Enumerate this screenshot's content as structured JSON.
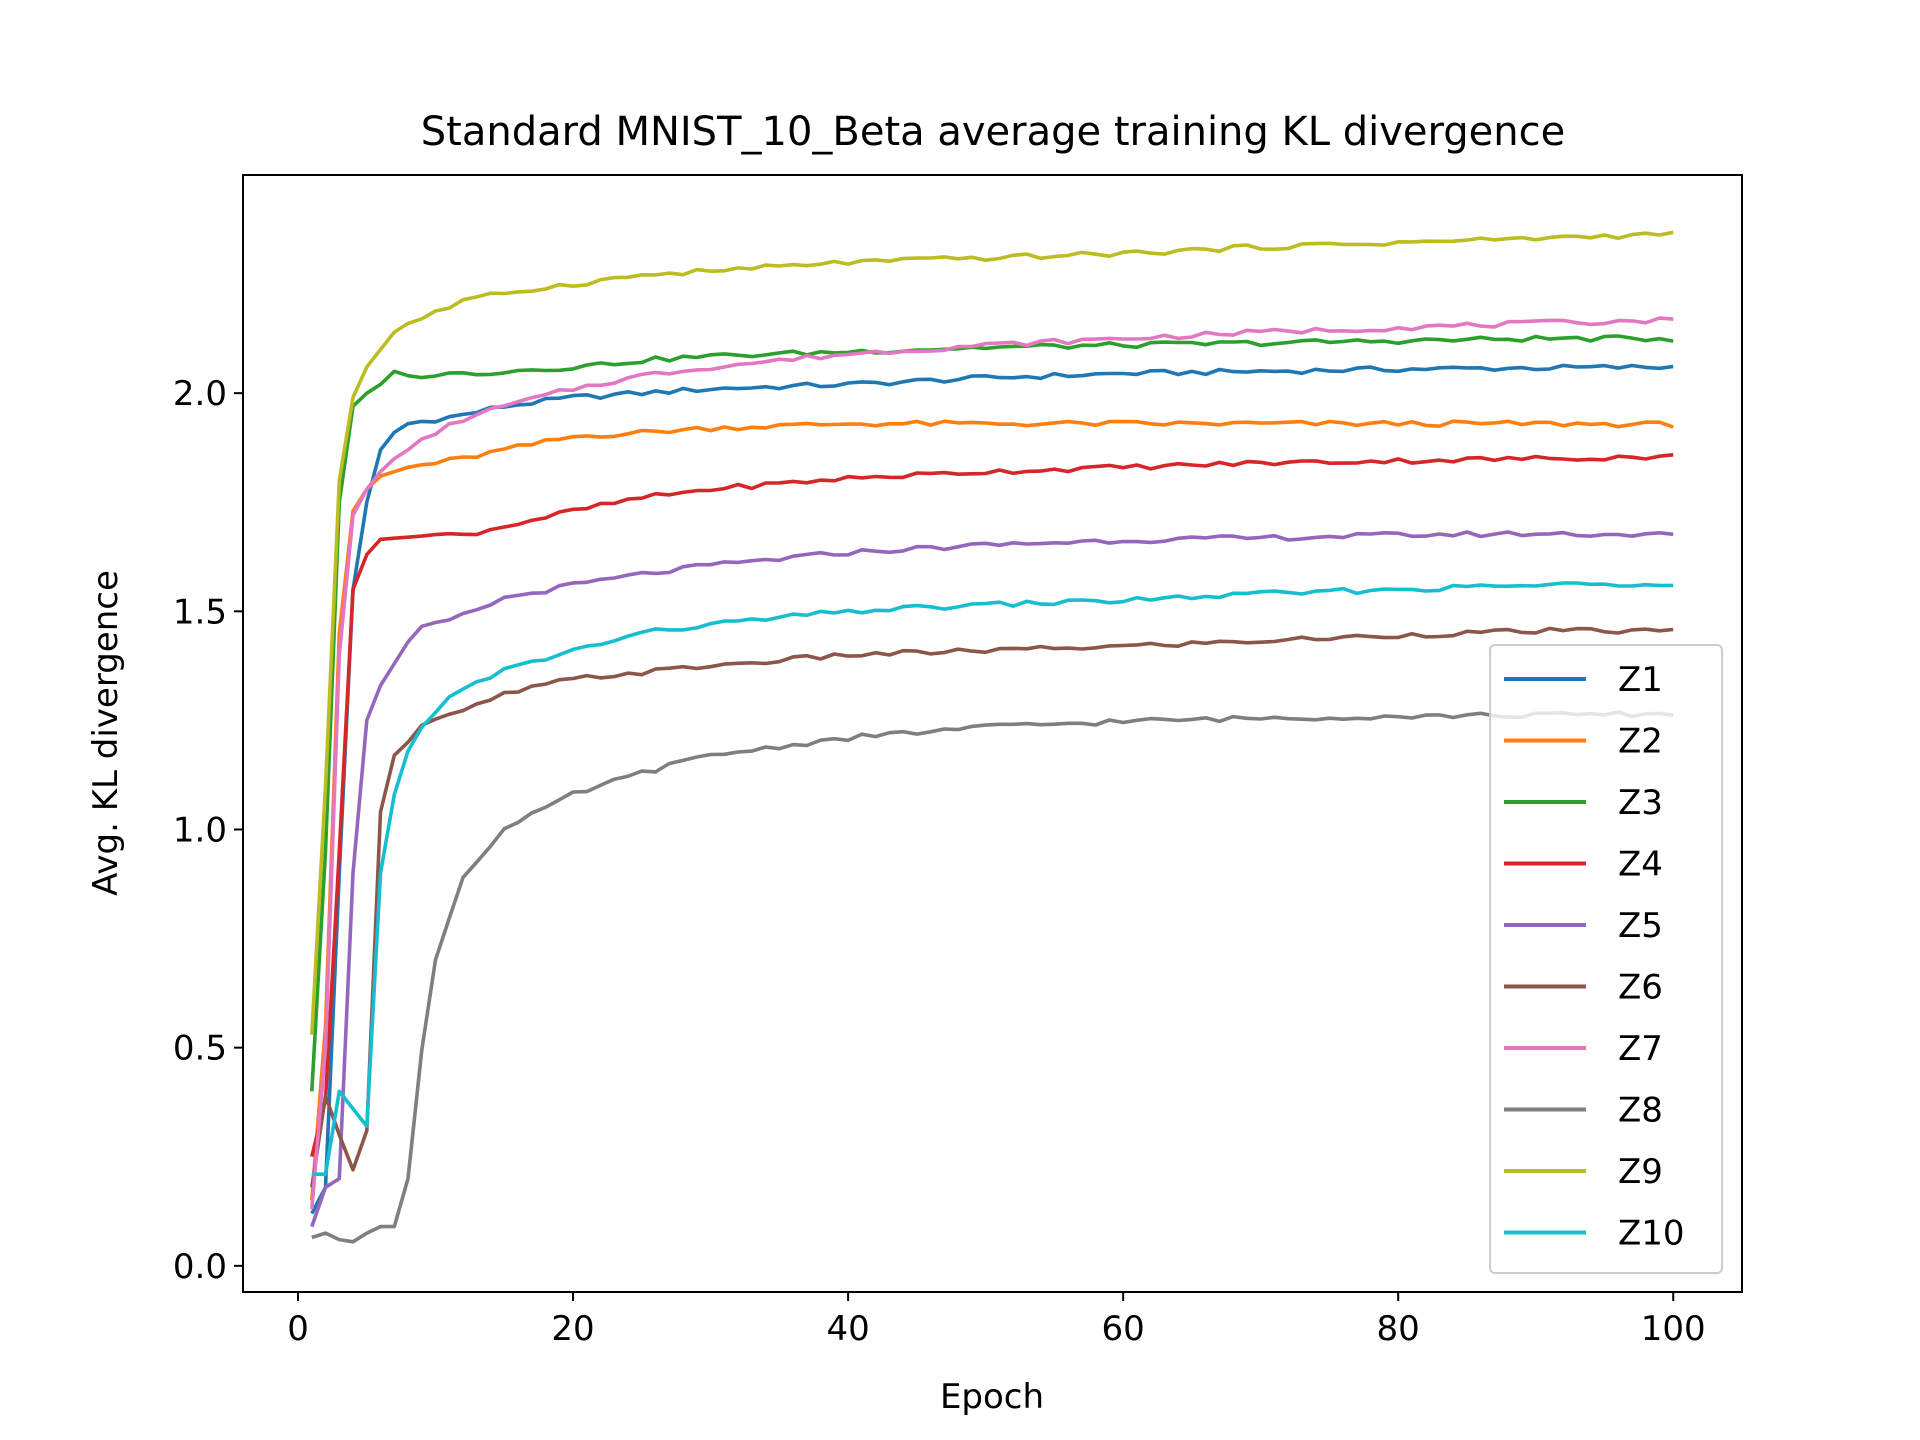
{
  "chart_data": {
    "type": "line",
    "title": "Standard MNIST_10_Beta average training KL divergence",
    "xlabel": "Epoch",
    "ylabel": "Avg. KL divergence",
    "xlim": [
      -4,
      105
    ],
    "ylim": [
      -0.06,
      2.5
    ],
    "xticks": [
      0,
      20,
      40,
      60,
      80,
      100
    ],
    "xtick_labels": [
      "0",
      "20",
      "40",
      "60",
      "80",
      "100"
    ],
    "yticks": [
      0.0,
      0.5,
      1.0,
      1.5,
      2.0
    ],
    "ytick_labels": [
      "0.0",
      "0.5",
      "1.0",
      "1.5",
      "2.0"
    ],
    "grid": false,
    "legend_position": "bottom-right",
    "series": [
      {
        "name": "Z1",
        "color": "#1f77b4",
        "knots": [
          [
            1,
            0.12
          ],
          [
            2,
            0.18
          ],
          [
            3,
            0.9
          ],
          [
            4,
            1.55
          ],
          [
            5,
            1.75
          ],
          [
            6,
            1.87
          ],
          [
            7,
            1.91
          ],
          [
            8,
            1.93
          ],
          [
            10,
            1.94
          ],
          [
            12,
            1.95
          ],
          [
            15,
            1.97
          ],
          [
            20,
            1.99
          ],
          [
            25,
            2.0
          ],
          [
            30,
            2.01
          ],
          [
            40,
            2.02
          ],
          [
            50,
            2.035
          ],
          [
            60,
            2.045
          ],
          [
            70,
            2.05
          ],
          [
            80,
            2.055
          ],
          [
            90,
            2.058
          ],
          [
            100,
            2.06
          ]
        ]
      },
      {
        "name": "Z2",
        "color": "#ff7f0e",
        "knots": [
          [
            1,
            0.15
          ],
          [
            2,
            0.55
          ],
          [
            3,
            1.45
          ],
          [
            4,
            1.73
          ],
          [
            5,
            1.78
          ],
          [
            6,
            1.81
          ],
          [
            8,
            1.83
          ],
          [
            10,
            1.84
          ],
          [
            12,
            1.85
          ],
          [
            15,
            1.87
          ],
          [
            20,
            1.9
          ],
          [
            25,
            1.91
          ],
          [
            30,
            1.92
          ],
          [
            40,
            1.93
          ],
          [
            50,
            1.93
          ],
          [
            60,
            1.93
          ],
          [
            70,
            1.93
          ],
          [
            80,
            1.93
          ],
          [
            90,
            1.93
          ],
          [
            100,
            1.928
          ]
        ]
      },
      {
        "name": "Z3",
        "color": "#2ca02c",
        "knots": [
          [
            1,
            0.4
          ],
          [
            2,
            0.95
          ],
          [
            3,
            1.75
          ],
          [
            4,
            1.97
          ],
          [
            5,
            2.0
          ],
          [
            6,
            2.02
          ],
          [
            7,
            2.05
          ],
          [
            8,
            2.04
          ],
          [
            10,
            2.042
          ],
          [
            12,
            2.045
          ],
          [
            15,
            2.05
          ],
          [
            20,
            2.06
          ],
          [
            25,
            2.075
          ],
          [
            30,
            2.085
          ],
          [
            40,
            2.095
          ],
          [
            50,
            2.105
          ],
          [
            60,
            2.11
          ],
          [
            70,
            2.115
          ],
          [
            80,
            2.12
          ],
          [
            90,
            2.125
          ],
          [
            100,
            2.125
          ]
        ]
      },
      {
        "name": "Z4",
        "color": "#d62728",
        "knots": [
          [
            1,
            0.25
          ],
          [
            2,
            0.38
          ],
          [
            3,
            0.95
          ],
          [
            4,
            1.55
          ],
          [
            5,
            1.63
          ],
          [
            6,
            1.665
          ],
          [
            8,
            1.67
          ],
          [
            10,
            1.675
          ],
          [
            12,
            1.675
          ],
          [
            15,
            1.695
          ],
          [
            20,
            1.73
          ],
          [
            25,
            1.76
          ],
          [
            30,
            1.78
          ],
          [
            40,
            1.805
          ],
          [
            50,
            1.82
          ],
          [
            60,
            1.83
          ],
          [
            70,
            1.84
          ],
          [
            80,
            1.845
          ],
          [
            90,
            1.85
          ],
          [
            100,
            1.855
          ]
        ]
      },
      {
        "name": "Z5",
        "color": "#9467bd",
        "knots": [
          [
            1,
            0.09
          ],
          [
            2,
            0.18
          ],
          [
            3,
            0.2
          ],
          [
            4,
            0.9
          ],
          [
            5,
            1.25
          ],
          [
            6,
            1.33
          ],
          [
            7,
            1.38
          ],
          [
            8,
            1.43
          ],
          [
            9,
            1.46
          ],
          [
            10,
            1.47
          ],
          [
            12,
            1.49
          ],
          [
            15,
            1.53
          ],
          [
            20,
            1.56
          ],
          [
            25,
            1.585
          ],
          [
            30,
            1.605
          ],
          [
            40,
            1.635
          ],
          [
            50,
            1.652
          ],
          [
            60,
            1.663
          ],
          [
            70,
            1.668
          ],
          [
            80,
            1.675
          ],
          [
            90,
            1.678
          ],
          [
            100,
            1.675
          ]
        ]
      },
      {
        "name": "Z6",
        "color": "#8c564b",
        "knots": [
          [
            1,
            0.18
          ],
          [
            2,
            0.39
          ],
          [
            3,
            0.3
          ],
          [
            4,
            0.22
          ],
          [
            5,
            0.31
          ],
          [
            6,
            1.04
          ],
          [
            7,
            1.17
          ],
          [
            8,
            1.2
          ],
          [
            9,
            1.24
          ],
          [
            10,
            1.25
          ],
          [
            12,
            1.27
          ],
          [
            15,
            1.31
          ],
          [
            20,
            1.345
          ],
          [
            25,
            1.36
          ],
          [
            30,
            1.375
          ],
          [
            40,
            1.4
          ],
          [
            50,
            1.41
          ],
          [
            60,
            1.42
          ],
          [
            70,
            1.432
          ],
          [
            80,
            1.445
          ],
          [
            90,
            1.455
          ],
          [
            100,
            1.455
          ]
        ]
      },
      {
        "name": "Z7",
        "color": "#e377c2",
        "knots": [
          [
            1,
            0.13
          ],
          [
            2,
            0.5
          ],
          [
            3,
            1.4
          ],
          [
            4,
            1.72
          ],
          [
            5,
            1.78
          ],
          [
            6,
            1.82
          ],
          [
            7,
            1.85
          ],
          [
            8,
            1.87
          ],
          [
            10,
            1.91
          ],
          [
            12,
            1.94
          ],
          [
            15,
            1.97
          ],
          [
            20,
            2.01
          ],
          [
            25,
            2.04
          ],
          [
            30,
            2.06
          ],
          [
            40,
            2.09
          ],
          [
            50,
            2.11
          ],
          [
            60,
            2.125
          ],
          [
            70,
            2.14
          ],
          [
            80,
            2.15
          ],
          [
            90,
            2.16
          ],
          [
            100,
            2.168
          ]
        ]
      },
      {
        "name": "Z8",
        "color": "#7f7f7f",
        "knots": [
          [
            1,
            0.065
          ],
          [
            2,
            0.075
          ],
          [
            3,
            0.06
          ],
          [
            4,
            0.055
          ],
          [
            5,
            0.075
          ],
          [
            6,
            0.09
          ],
          [
            7,
            0.09
          ],
          [
            8,
            0.2
          ],
          [
            9,
            0.5
          ],
          [
            10,
            0.7
          ],
          [
            11,
            0.8
          ],
          [
            12,
            0.89
          ],
          [
            13,
            0.93
          ],
          [
            15,
            1.0
          ],
          [
            20,
            1.08
          ],
          [
            25,
            1.13
          ],
          [
            30,
            1.17
          ],
          [
            40,
            1.21
          ],
          [
            50,
            1.235
          ],
          [
            60,
            1.248
          ],
          [
            70,
            1.255
          ],
          [
            80,
            1.26
          ],
          [
            90,
            1.262
          ],
          [
            100,
            1.265
          ]
        ]
      },
      {
        "name": "Z9",
        "color": "#bcbd22",
        "knots": [
          [
            1,
            0.53
          ],
          [
            2,
            1.1
          ],
          [
            3,
            1.8
          ],
          [
            4,
            1.99
          ],
          [
            5,
            2.06
          ],
          [
            6,
            2.1
          ],
          [
            7,
            2.14
          ],
          [
            8,
            2.16
          ],
          [
            10,
            2.185
          ],
          [
            12,
            2.21
          ],
          [
            15,
            2.23
          ],
          [
            20,
            2.25
          ],
          [
            25,
            2.27
          ],
          [
            30,
            2.28
          ],
          [
            40,
            2.3
          ],
          [
            50,
            2.31
          ],
          [
            60,
            2.32
          ],
          [
            70,
            2.335
          ],
          [
            80,
            2.345
          ],
          [
            90,
            2.355
          ],
          [
            100,
            2.365
          ]
        ]
      },
      {
        "name": "Z10",
        "color": "#17becf",
        "knots": [
          [
            1,
            0.21
          ],
          [
            2,
            0.21
          ],
          [
            3,
            0.4
          ],
          [
            4,
            0.36
          ],
          [
            5,
            0.32
          ],
          [
            6,
            0.9
          ],
          [
            7,
            1.08
          ],
          [
            8,
            1.18
          ],
          [
            9,
            1.24
          ],
          [
            10,
            1.27
          ],
          [
            11,
            1.3
          ],
          [
            12,
            1.32
          ],
          [
            15,
            1.365
          ],
          [
            20,
            1.41
          ],
          [
            25,
            1.45
          ],
          [
            30,
            1.47
          ],
          [
            40,
            1.5
          ],
          [
            50,
            1.515
          ],
          [
            60,
            1.525
          ],
          [
            70,
            1.54
          ],
          [
            80,
            1.55
          ],
          [
            90,
            1.56
          ],
          [
            100,
            1.565
          ]
        ]
      }
    ]
  }
}
